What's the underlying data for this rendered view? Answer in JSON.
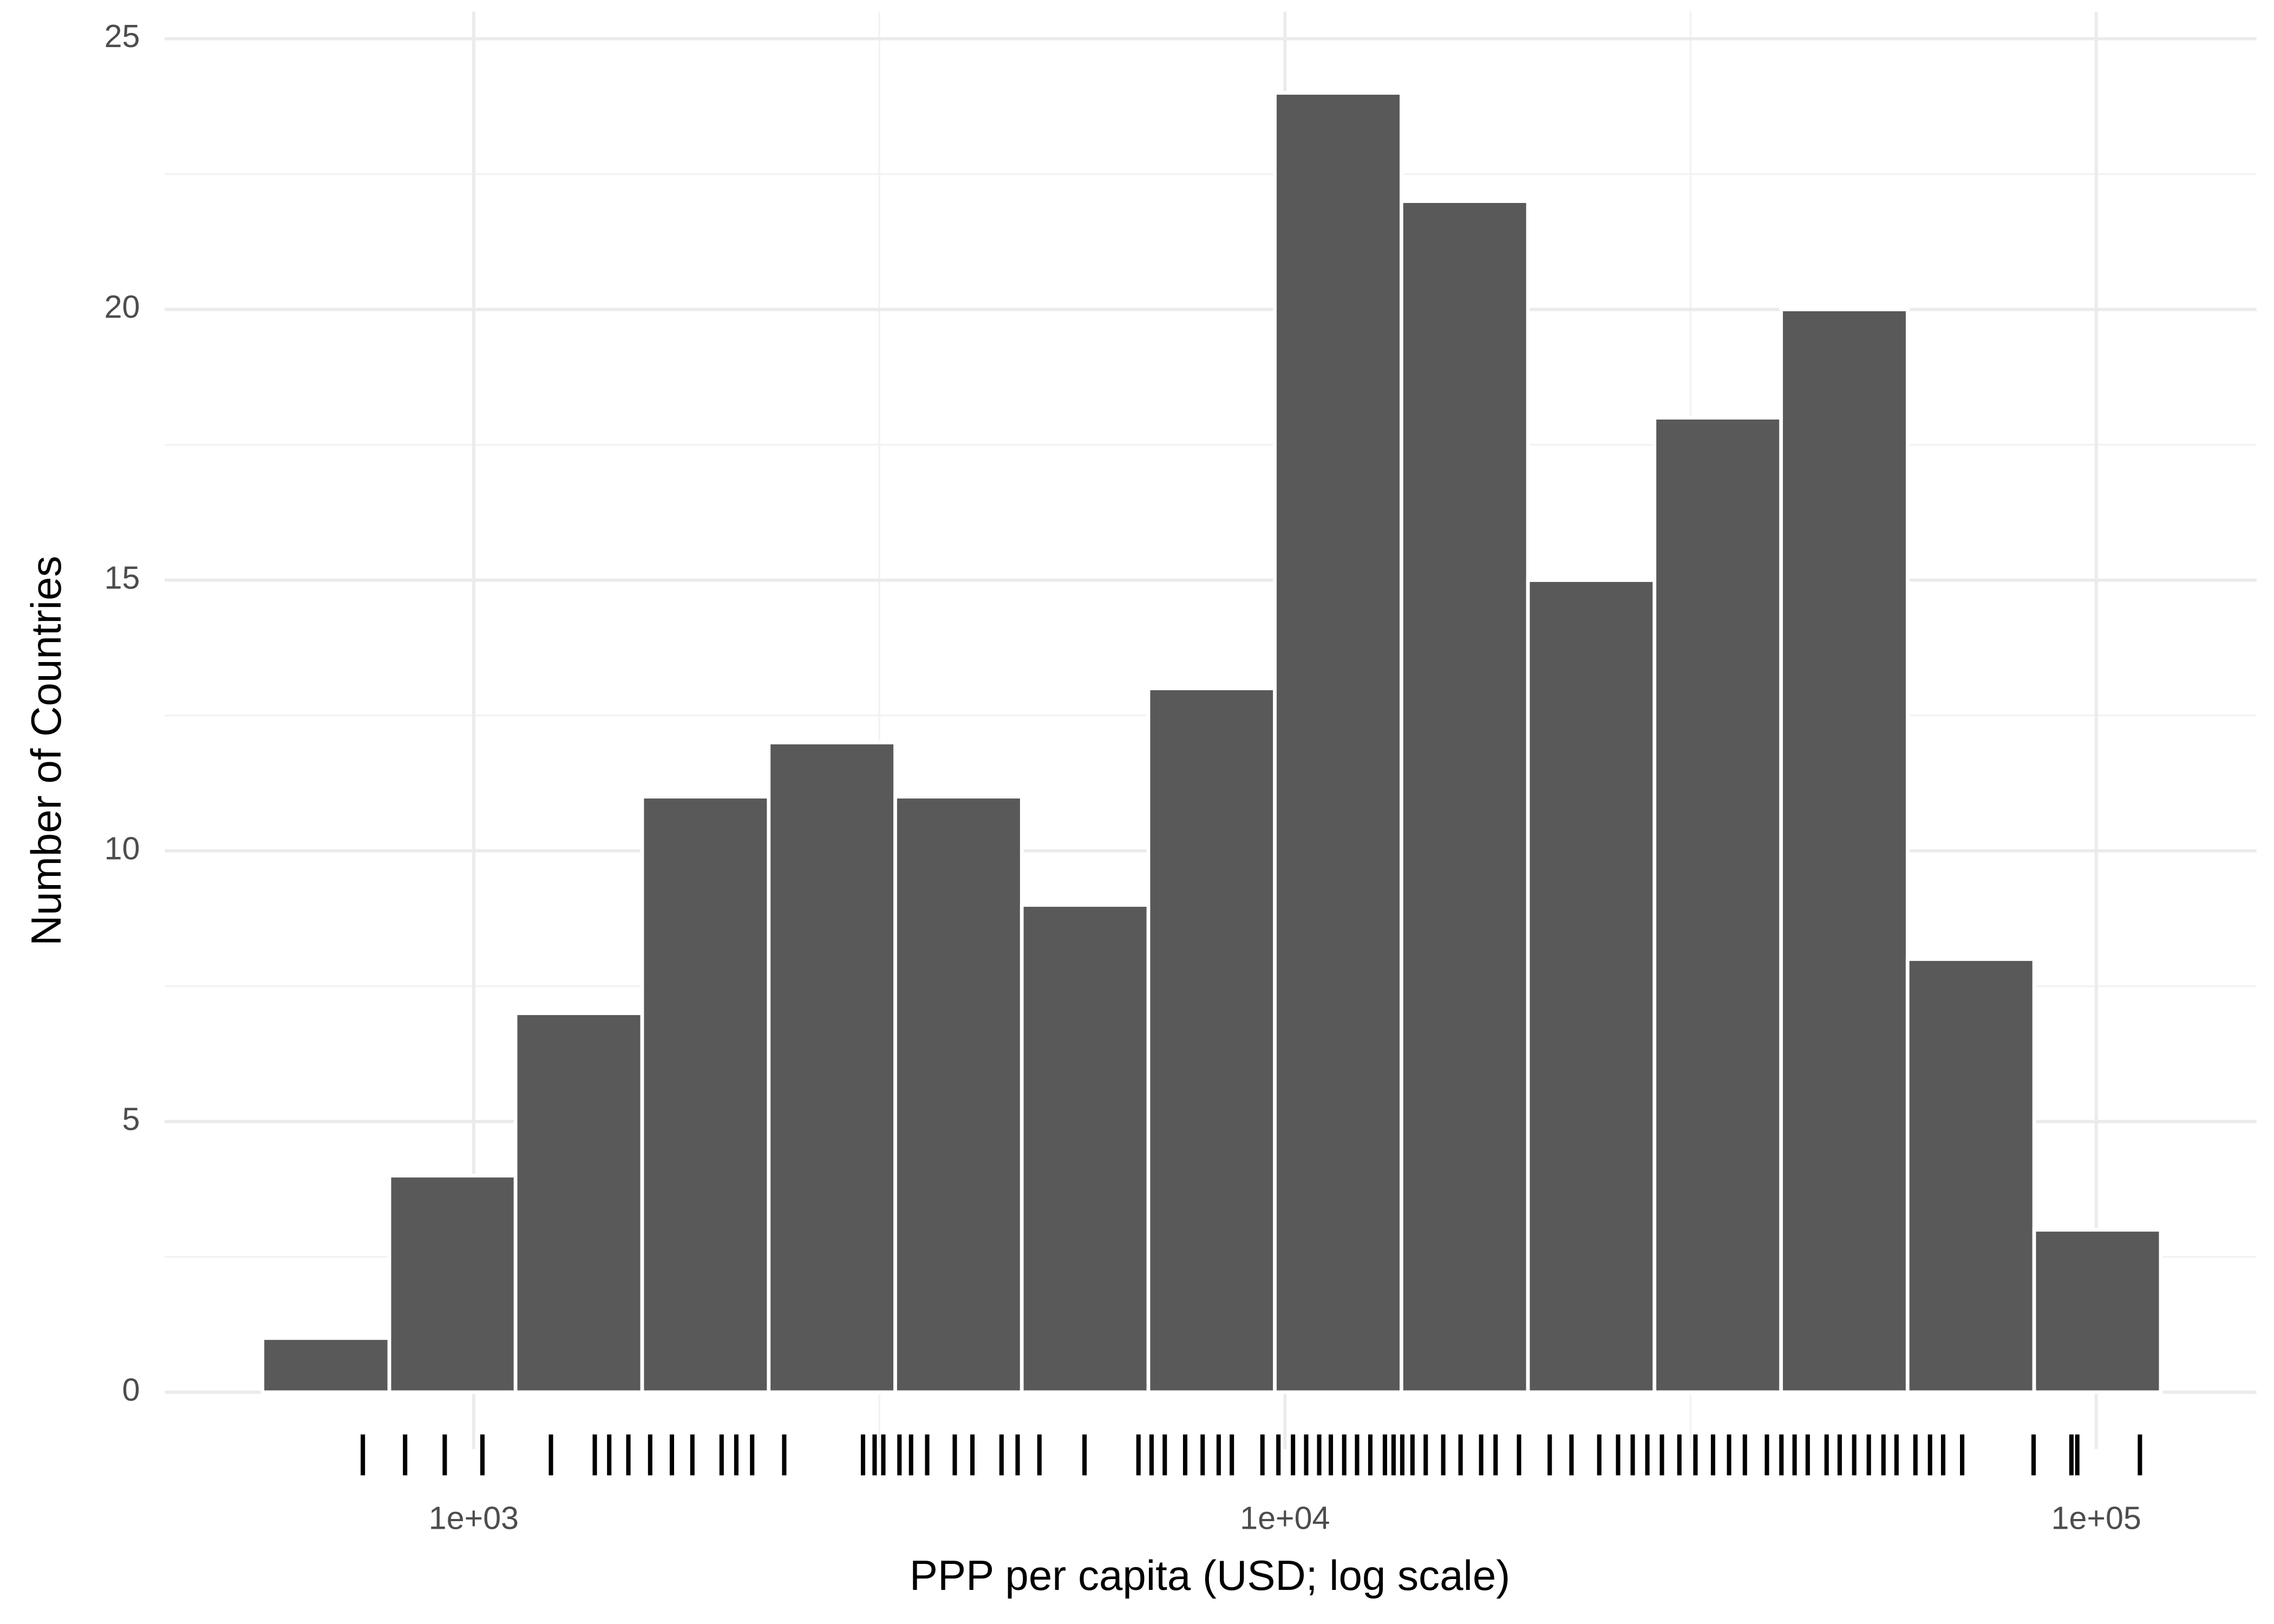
{
  "chart_data": {
    "type": "histogram",
    "x_label": "PPP per capita (USD; log scale)",
    "y_label": "Number of Countries",
    "bins": [
      549,
      787,
      1126,
      1613,
      2310,
      3308,
      4738,
      6786,
      9716,
      13916,
      19930,
      28540,
      40880,
      58540,
      83850,
      120090
    ],
    "values": [
      1,
      4,
      7,
      11,
      12,
      11,
      9,
      13,
      24,
      22,
      15,
      18,
      20,
      8,
      3
    ],
    "color": "#595959",
    "rug": [
      730,
      823,
      921,
      1025,
      1245,
      1410,
      1469,
      1551,
      1650,
      1755,
      1860,
      2021,
      2107,
      2204,
      2414,
      3019,
      3120,
      3198,
      3348,
      3460,
      3622,
      3917,
      4118,
      4473,
      4682,
      4981,
      5661,
      6598,
      6848,
      7109,
      7533,
      7916,
      8285,
      8600,
      9380,
      9815,
      10230,
      10620,
      11020,
      11390,
      11830,
      12270,
      12740,
      13280,
      13610,
      13950,
      14360,
      14910,
      15670,
      16460,
      17450,
      18180,
      19430,
      21200,
      22550,
      24400,
      25740,
      26830,
      27970,
      29150,
      30630,
      32060,
      33700,
      35270,
      36890,
      39270,
      40920,
      42480,
      44090,
      46520,
      48280,
      50310,
      52440,
      54670,
      56730,
      59860,
      62390,
      64760,
      68350,
      83710,
      93200,
      94760,
      113200
    ],
    "rug_color": "#000000",
    "x_log": true,
    "xlim": [
      416,
      157600
    ],
    "xticks": [
      {
        "value": 1000,
        "label": "1e+03"
      },
      {
        "value": 10000,
        "label": "1e+04"
      },
      {
        "value": 100000,
        "label": "1e+05"
      }
    ],
    "ylim": [
      -1.05,
      25.5
    ],
    "yticks": [
      0,
      5,
      10,
      15,
      20,
      25
    ],
    "grid": true
  }
}
